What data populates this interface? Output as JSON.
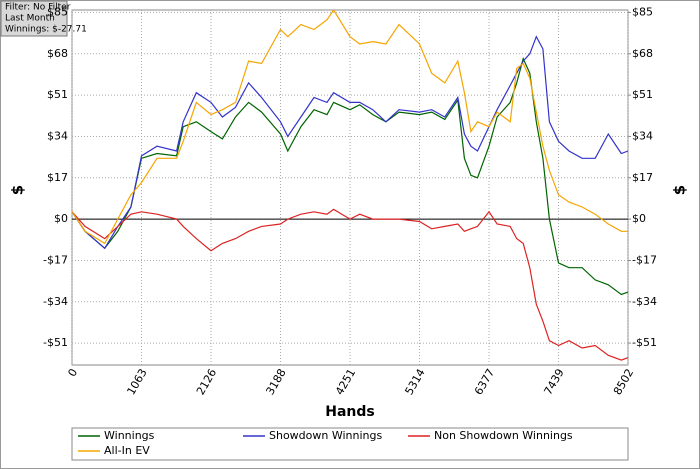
{
  "info": {
    "lines": [
      "Filter: No Filter",
      "Last Month",
      "Winnings: $-27.71"
    ]
  },
  "chart_data": {
    "type": "line",
    "x_label": "Hands",
    "y_label": "$",
    "y2_label": "$",
    "x": [
      0,
      200,
      500,
      700,
      900,
      1063,
      1300,
      1600,
      1700,
      1900,
      2126,
      2300,
      2500,
      2700,
      2900,
      3188,
      3300,
      3500,
      3700,
      3900,
      4000,
      4251,
      4400,
      4600,
      4800,
      5000,
      5314,
      5500,
      5700,
      5900,
      6000,
      6100,
      6200,
      6377,
      6500,
      6700,
      6800,
      6900,
      7000,
      7100,
      7200,
      7300,
      7439,
      7600,
      7800,
      8000,
      8200,
      8400,
      8502
    ],
    "series": [
      {
        "name": "Winnings",
        "color": "#006400",
        "values": [
          3,
          -5,
          -12,
          -5,
          5,
          25,
          27,
          26,
          38,
          40,
          36,
          33,
          42,
          48,
          44,
          35,
          28,
          38,
          45,
          43,
          48,
          45,
          47,
          43,
          40,
          44,
          43,
          44,
          41,
          49,
          25,
          18,
          17,
          30,
          42,
          48,
          56,
          66,
          60,
          40,
          25,
          0,
          -18,
          -20,
          -20,
          -25,
          -27,
          -31,
          -30
        ]
      },
      {
        "name": "Showdown Winnings",
        "color": "#3333cc",
        "values": [
          3,
          -5,
          -12,
          -3,
          5,
          26,
          30,
          28,
          40,
          52,
          48,
          42,
          46,
          56,
          50,
          40,
          34,
          42,
          50,
          48,
          52,
          48,
          48,
          45,
          40,
          45,
          44,
          45,
          42,
          50,
          35,
          30,
          28,
          38,
          45,
          55,
          60,
          65,
          68,
          75,
          70,
          40,
          32,
          28,
          25,
          25,
          35,
          27,
          28
        ]
      },
      {
        "name": "Non Showdown Winnings",
        "color": "#dd2222",
        "values": [
          3,
          -3,
          -8,
          -3,
          2,
          3,
          2,
          0,
          -3,
          -8,
          -13,
          -10,
          -8,
          -5,
          -3,
          -2,
          0,
          2,
          3,
          2,
          4,
          0,
          2,
          0,
          0,
          0,
          -1,
          -4,
          -3,
          -2,
          -5,
          -4,
          -3,
          3,
          -2,
          -3,
          -8,
          -10,
          -20,
          -35,
          -42,
          -50,
          -52,
          -50,
          -53,
          -52,
          -56,
          -58,
          -57
        ]
      },
      {
        "name": "All-In EV",
        "color": "#f5a500",
        "values": [
          3,
          -5,
          -10,
          0,
          10,
          15,
          25,
          25,
          32,
          48,
          43,
          45,
          48,
          65,
          64,
          78,
          75,
          80,
          78,
          82,
          86,
          75,
          72,
          73,
          72,
          80,
          72,
          60,
          56,
          65,
          52,
          36,
          40,
          38,
          44,
          40,
          62,
          64,
          58,
          44,
          30,
          20,
          10,
          7,
          5,
          2,
          -2,
          -5,
          -5
        ]
      }
    ],
    "xlim": [
      0,
      8502
    ],
    "xticks": [
      0,
      1063,
      2126,
      3188,
      4251,
      5314,
      6377,
      7439,
      8502
    ],
    "ylim": [
      -60,
      86
    ],
    "yticks": [
      {
        "value": -51,
        "label": "-$51"
      },
      {
        "value": -34,
        "label": "-$34"
      },
      {
        "value": -17,
        "label": "-$17"
      },
      {
        "value": 0,
        "label": "$0"
      },
      {
        "value": 17,
        "label": "$17"
      },
      {
        "value": 34,
        "label": "$34"
      },
      {
        "value": 51,
        "label": "$51"
      },
      {
        "value": 68,
        "label": "$68"
      },
      {
        "value": 85,
        "label": "$85"
      }
    ],
    "y2lim": [
      -60,
      86
    ],
    "y2ticks": [
      {
        "value": -51,
        "label": "-$51"
      },
      {
        "value": -34,
        "label": "-$34"
      },
      {
        "value": -17,
        "label": "-$17"
      },
      {
        "value": 0,
        "label": "$0"
      },
      {
        "value": 17,
        "label": "$17"
      },
      {
        "value": 34,
        "label": "$34"
      },
      {
        "value": 51,
        "label": "$51"
      },
      {
        "value": 68,
        "label": "$68"
      },
      {
        "value": 85,
        "label": "$85"
      }
    ],
    "grid": true
  }
}
